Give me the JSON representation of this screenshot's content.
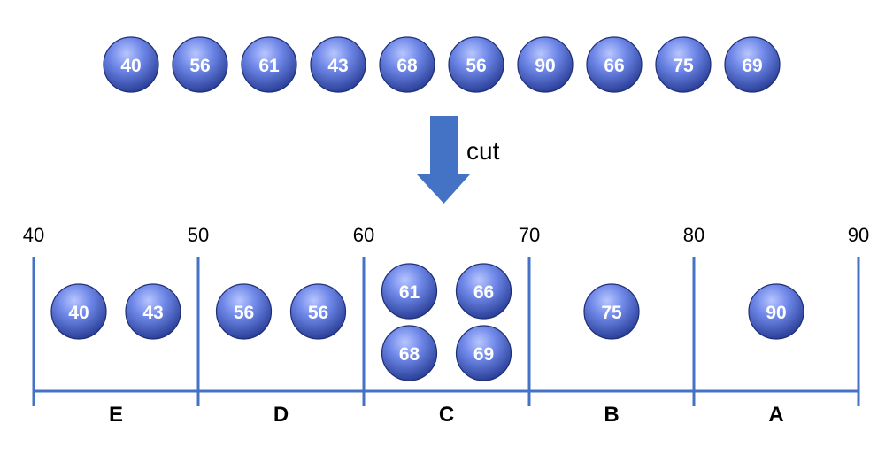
{
  "colors": {
    "ball_light": "#8fa3f0",
    "ball_mid": "#4a63c9",
    "ball_dark": "#22378f",
    "ball_stroke": "#1f2f75",
    "line": "#4472c4",
    "arrow": "#4472c4"
  },
  "input_values": [
    "40",
    "56",
    "61",
    "43",
    "68",
    "56",
    "90",
    "66",
    "75",
    "69"
  ],
  "arrow": {
    "label": "cut"
  },
  "axis": {
    "ticks": [
      "40",
      "50",
      "60",
      "70",
      "80",
      "90"
    ]
  },
  "bins": [
    {
      "grade": "E",
      "values": [
        "40",
        "43"
      ]
    },
    {
      "grade": "D",
      "values": [
        "56",
        "56"
      ]
    },
    {
      "grade": "C",
      "values": [
        "61",
        "66",
        "68",
        "69"
      ]
    },
    {
      "grade": "B",
      "values": [
        "75"
      ]
    },
    {
      "grade": "A",
      "values": [
        "90"
      ]
    }
  ]
}
